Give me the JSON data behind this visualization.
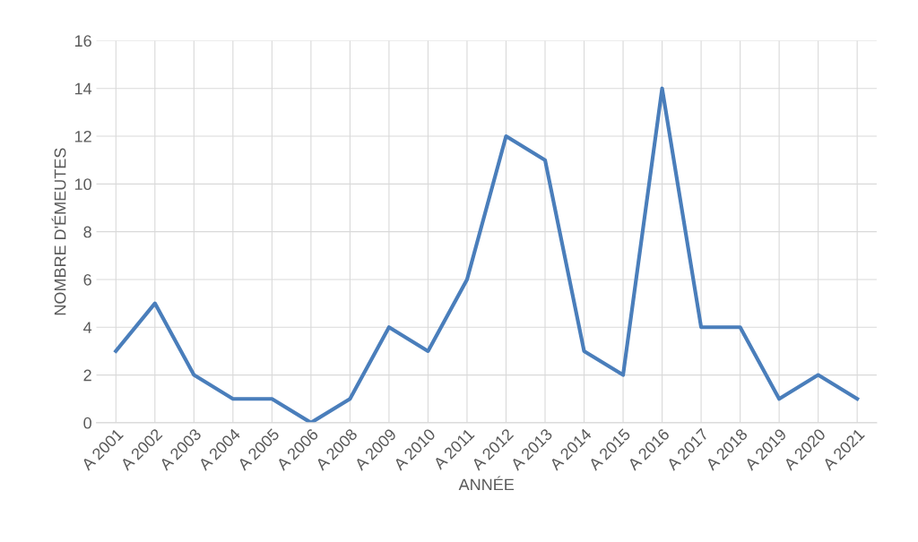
{
  "chart_data": {
    "type": "line",
    "xlabel": "ANNÉE",
    "ylabel": "NOMBRE D'ÉMEUTES",
    "categories": [
      "A 2001",
      "A 2002",
      "A 2003",
      "A 2004",
      "A 2005",
      "A 2006",
      "A 2008",
      "A 2009",
      "A 2010",
      "A 2011",
      "A 2012",
      "A 2013",
      "A 2014",
      "A 2015",
      "A 2016",
      "A 2017",
      "A 2018",
      "A 2019",
      "A 2020",
      "A 2021"
    ],
    "series": [
      {
        "color": "#4a7ebb",
        "values": [
          3,
          5,
          2,
          1,
          1,
          0,
          1,
          4,
          3,
          6,
          12,
          11,
          3,
          2,
          14,
          4,
          4,
          1,
          2,
          1
        ]
      }
    ],
    "ylim": [
      0,
      16
    ],
    "yticks": [
      0,
      2,
      4,
      6,
      8,
      10,
      12,
      14,
      16
    ],
    "grid": true,
    "marker": "none",
    "line_style": "solid"
  }
}
